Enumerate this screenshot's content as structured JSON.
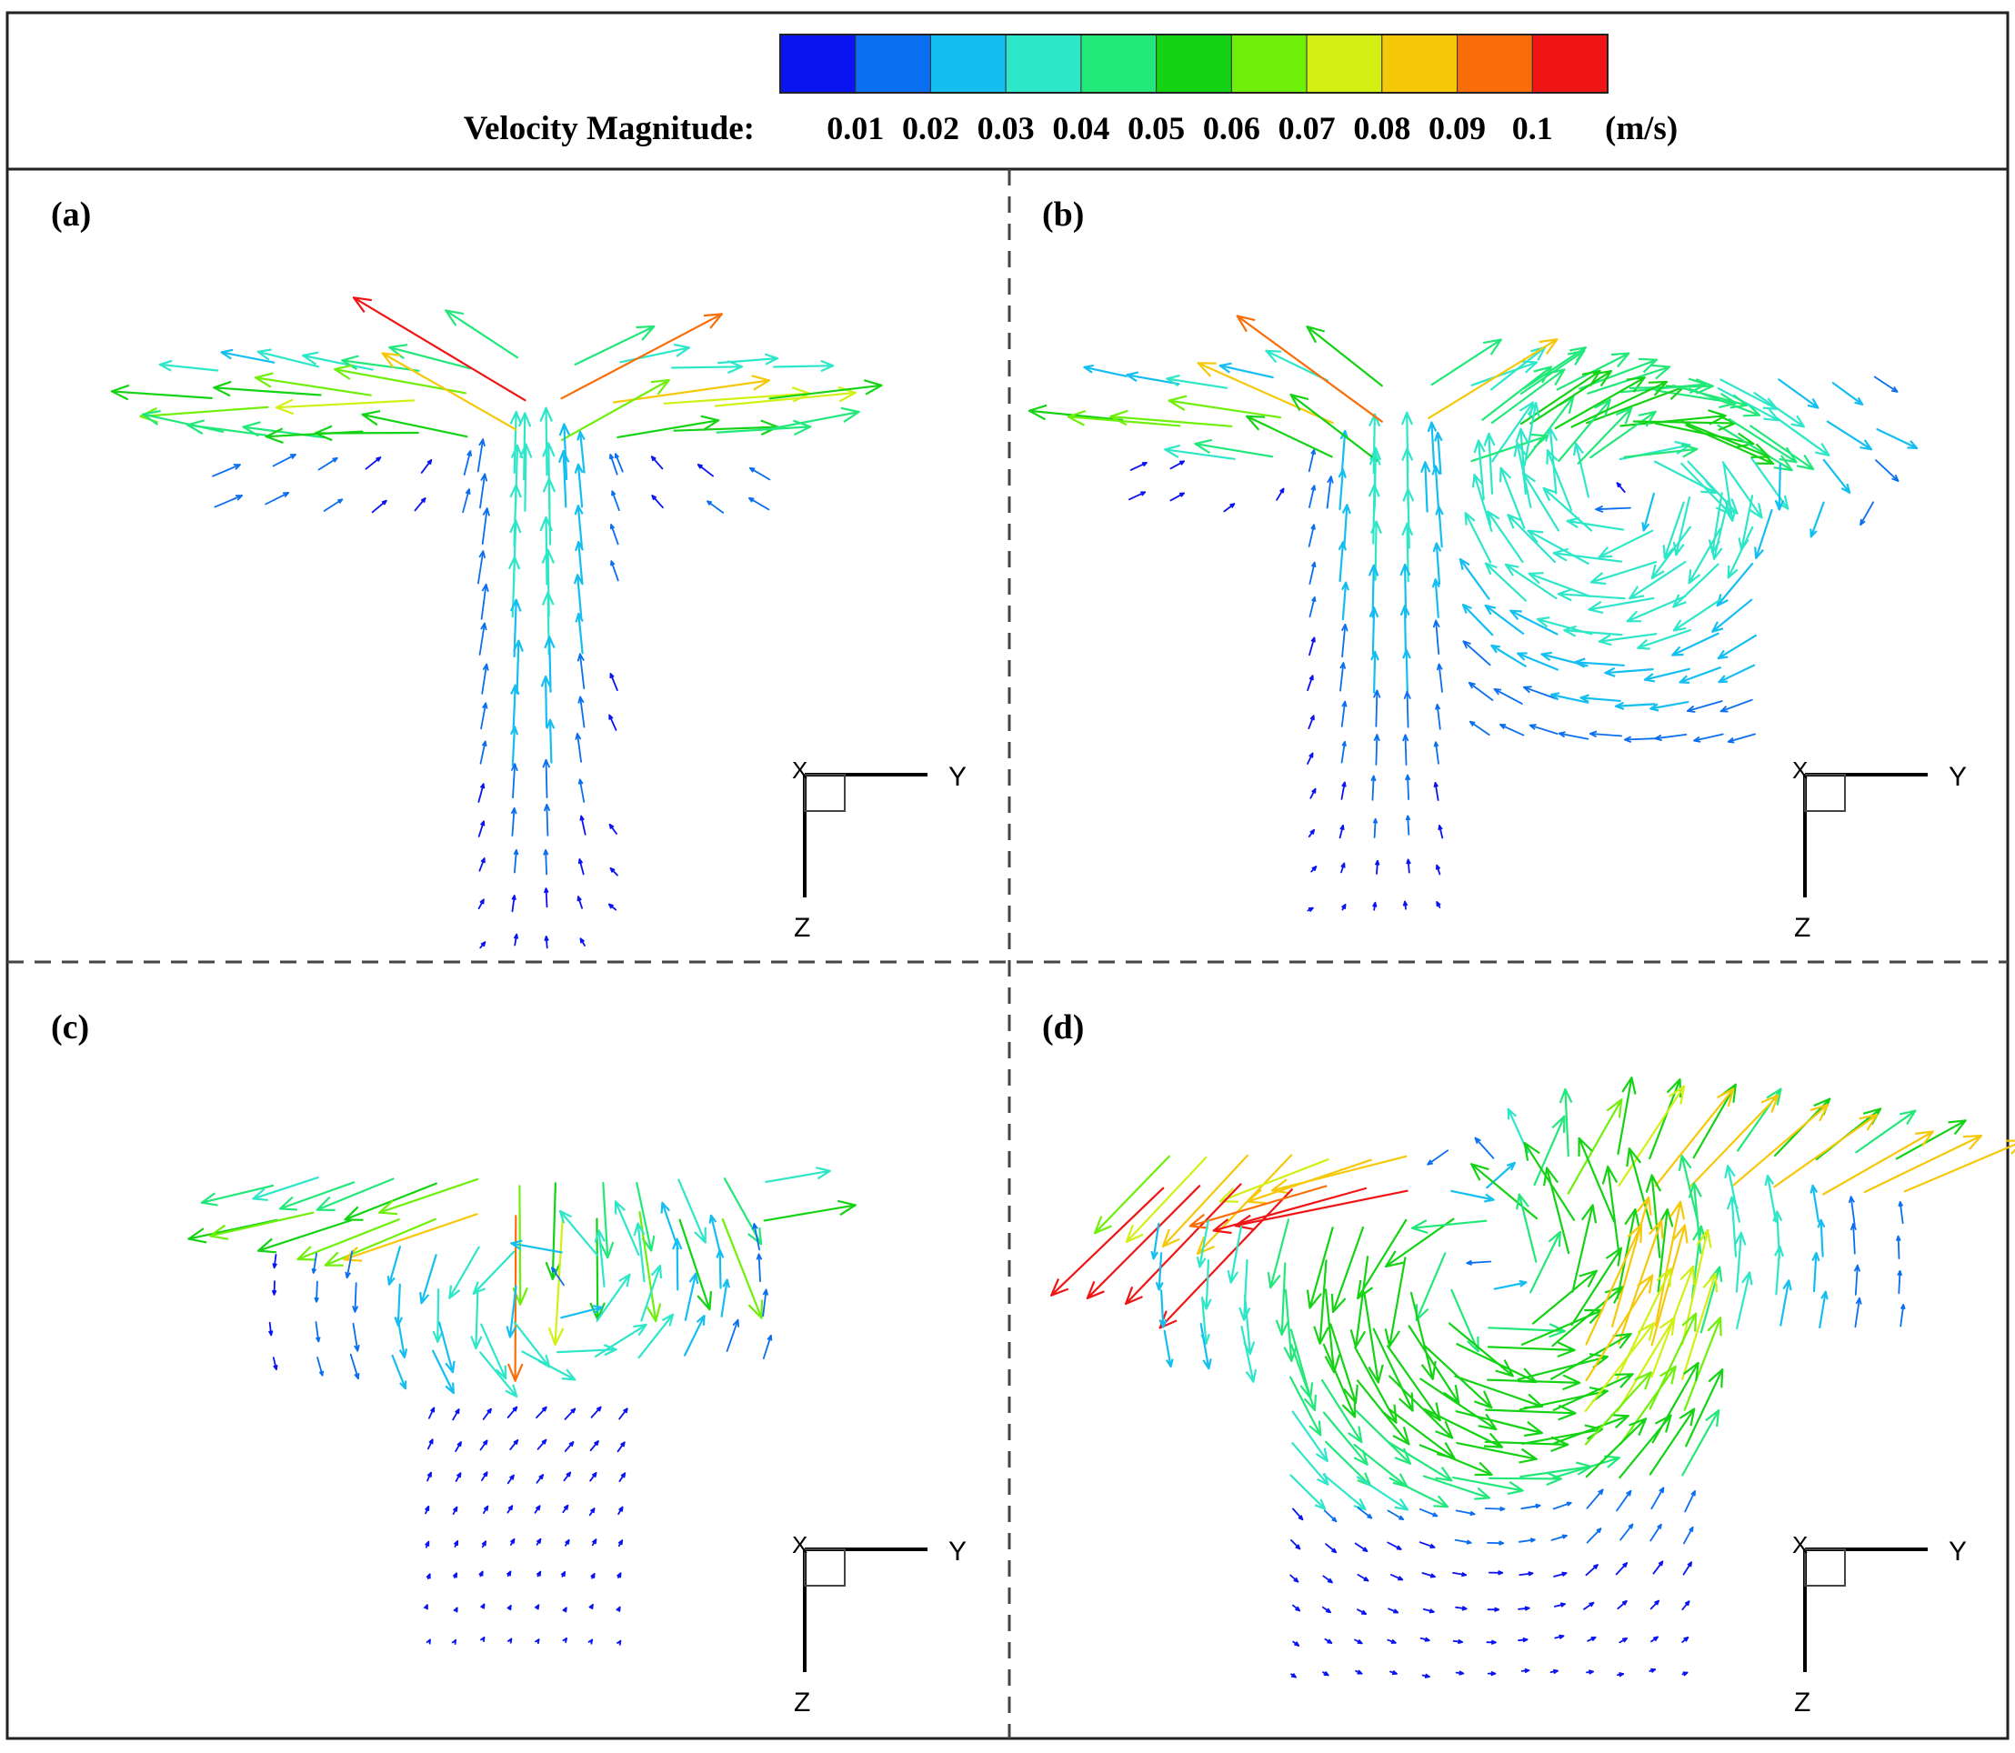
{
  "chart_data": {
    "type": "vector-field",
    "title": "",
    "colorbar": {
      "label": "Velocity Magnitude:",
      "unit": "(m/s)",
      "min": 0,
      "max": 0.105,
      "tick_labels": [
        "0.01",
        "0.02",
        "0.03",
        "0.04",
        "0.05",
        "0.06",
        "0.07",
        "0.08",
        "0.09",
        "0.1"
      ],
      "colors": [
        "#0a14f0",
        "#0a6ef0",
        "#14bef0",
        "#2ee6c8",
        "#22e87a",
        "#14d214",
        "#6ef00a",
        "#d2f014",
        "#f5c80a",
        "#fa6e0a",
        "#f01414"
      ]
    },
    "panels": [
      {
        "label": "(a)",
        "axis_right": "Y",
        "axis_down": "Z",
        "axis_normal": "X",
        "description": "single jet rising upward and spreading sideways at the free surface"
      },
      {
        "label": "(b)",
        "axis_right": "Y",
        "axis_down": "Z",
        "axis_normal": "X",
        "description": "rising jet with a recirculation vortex forming to the right"
      },
      {
        "label": "(c)",
        "axis_right": "Y",
        "axis_down": "Z",
        "axis_normal": "X",
        "description": "surface spreading flow with a shallow clockwise recirculation"
      },
      {
        "label": "(d)",
        "axis_right": "Y",
        "axis_down": "Z",
        "axis_normal": "X",
        "description": "well developed large recirculating vortex beneath the surface"
      }
    ]
  }
}
